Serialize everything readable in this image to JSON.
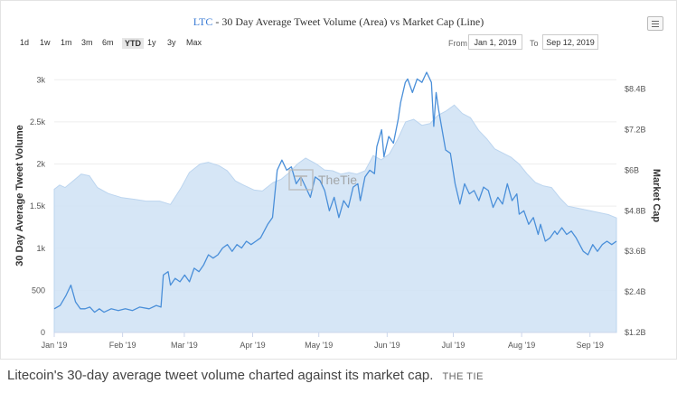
{
  "range_selector": {
    "buttons": [
      "1d",
      "1w",
      "1m",
      "3m",
      "6m",
      "YTD",
      "1y",
      "3y",
      "Max"
    ],
    "active": "YTD",
    "from_label": "From",
    "from_value": "Jan 1, 2019",
    "to_label": "To",
    "to_value": "Sep 12, 2019"
  },
  "watermark": "TheTie",
  "caption": {
    "text": "Litecoin's 30-day average tweet volume charted against its market cap.",
    "source": "THE TIE"
  },
  "colors": {
    "area_fill": "#cfe2f5",
    "line": "#4a8fd9",
    "title_symbol": "#3a7bd5"
  },
  "chart_data": {
    "type": "area",
    "title": "30 Day Average Tweet Volume (Area) vs Market Cap (Line)",
    "title_symbol": "LTC",
    "title_separator": " - ",
    "x_start": "2019-01-01",
    "x_end": "2019-09-12",
    "x_ticks": [
      "Jan '19",
      "Feb '19",
      "Mar '19",
      "Apr '19",
      "May '19",
      "Jun '19",
      "Jul '19",
      "Aug '19",
      "Sep '19"
    ],
    "y_left": {
      "label": "30 Day Average Tweet Volume",
      "ticks": [
        "0",
        "500",
        "1k",
        "1.5k",
        "2k",
        "2.5k",
        "3k"
      ],
      "min": 0,
      "max": 3250
    },
    "y_right": {
      "label": "Market Cap",
      "ticks": [
        "$1.2B",
        "$2.4B",
        "$3.6B",
        "$4.8B",
        "$6B",
        "$7.2B",
        "$8.4B"
      ],
      "min_billions": 1.2,
      "max_billions": 9.3
    },
    "series": [
      {
        "name": "30 Day Average Tweet Volume",
        "type": "area",
        "axis": "left",
        "points": [
          [
            0,
            1700
          ],
          [
            4,
            1750
          ],
          [
            8,
            1720
          ],
          [
            14,
            1800
          ],
          [
            20,
            1880
          ],
          [
            26,
            1860
          ],
          [
            32,
            1720
          ],
          [
            40,
            1650
          ],
          [
            50,
            1600
          ],
          [
            60,
            1580
          ],
          [
            68,
            1560
          ],
          [
            78,
            1560
          ],
          [
            86,
            1520
          ],
          [
            94,
            1720
          ],
          [
            100,
            1900
          ],
          [
            108,
            2000
          ],
          [
            114,
            2020
          ],
          [
            122,
            1980
          ],
          [
            128,
            1920
          ],
          [
            134,
            1800
          ],
          [
            140,
            1750
          ],
          [
            148,
            1690
          ],
          [
            154,
            1680
          ],
          [
            162,
            1780
          ],
          [
            168,
            1820
          ],
          [
            174,
            1900
          ],
          [
            180,
            2000
          ],
          [
            186,
            2070
          ],
          [
            194,
            2000
          ],
          [
            200,
            1930
          ],
          [
            206,
            1920
          ],
          [
            212,
            1880
          ],
          [
            218,
            1900
          ],
          [
            224,
            1880
          ],
          [
            230,
            1920
          ],
          [
            236,
            2100
          ],
          [
            242,
            2050
          ],
          [
            248,
            2120
          ],
          [
            254,
            2290
          ],
          [
            260,
            2500
          ],
          [
            266,
            2530
          ],
          [
            272,
            2460
          ],
          [
            278,
            2480
          ],
          [
            284,
            2580
          ],
          [
            290,
            2630
          ],
          [
            296,
            2700
          ],
          [
            302,
            2600
          ],
          [
            308,
            2550
          ],
          [
            314,
            2400
          ],
          [
            320,
            2300
          ],
          [
            326,
            2180
          ],
          [
            332,
            2130
          ],
          [
            338,
            2080
          ],
          [
            344,
            2000
          ],
          [
            350,
            1880
          ],
          [
            356,
            1780
          ],
          [
            362,
            1740
          ],
          [
            368,
            1720
          ],
          [
            374,
            1600
          ],
          [
            380,
            1500
          ],
          [
            386,
            1480
          ],
          [
            392,
            1460
          ],
          [
            398,
            1440
          ],
          [
            404,
            1420
          ],
          [
            410,
            1400
          ],
          [
            416,
            1360
          ]
        ]
      },
      {
        "name": "Market Cap",
        "type": "line",
        "axis": "right",
        "points": [
          [
            0,
            1.9
          ],
          [
            5,
            2.0
          ],
          [
            10,
            2.3
          ],
          [
            14,
            2.6
          ],
          [
            18,
            2.1
          ],
          [
            22,
            1.9
          ],
          [
            26,
            1.9
          ],
          [
            30,
            1.95
          ],
          [
            34,
            1.8
          ],
          [
            38,
            1.9
          ],
          [
            42,
            1.8
          ],
          [
            48,
            1.9
          ],
          [
            54,
            1.85
          ],
          [
            60,
            1.9
          ],
          [
            66,
            1.85
          ],
          [
            72,
            1.95
          ],
          [
            80,
            1.9
          ],
          [
            86,
            2.0
          ],
          [
            90,
            1.95
          ],
          [
            92,
            2.9
          ],
          [
            96,
            3.0
          ],
          [
            98,
            2.6
          ],
          [
            102,
            2.8
          ],
          [
            106,
            2.7
          ],
          [
            110,
            2.9
          ],
          [
            114,
            2.7
          ],
          [
            118,
            3.1
          ],
          [
            122,
            3.0
          ],
          [
            126,
            3.2
          ],
          [
            130,
            3.5
          ],
          [
            134,
            3.4
          ],
          [
            138,
            3.5
          ],
          [
            142,
            3.7
          ],
          [
            146,
            3.8
          ],
          [
            150,
            3.6
          ],
          [
            154,
            3.8
          ],
          [
            158,
            3.7
          ],
          [
            162,
            3.9
          ],
          [
            166,
            3.8
          ],
          [
            170,
            3.9
          ],
          [
            174,
            4.0
          ],
          [
            180,
            4.4
          ],
          [
            184,
            4.6
          ],
          [
            188,
            6.0
          ],
          [
            192,
            6.3
          ],
          [
            196,
            6.0
          ],
          [
            200,
            6.1
          ],
          [
            204,
            5.6
          ],
          [
            208,
            5.8
          ],
          [
            212,
            5.5
          ],
          [
            216,
            5.2
          ],
          [
            220,
            5.8
          ],
          [
            224,
            5.7
          ],
          [
            228,
            5.4
          ],
          [
            232,
            4.8
          ],
          [
            236,
            5.2
          ],
          [
            240,
            4.6
          ],
          [
            244,
            5.1
          ],
          [
            248,
            4.9
          ],
          [
            252,
            5.5
          ],
          [
            256,
            5.6
          ],
          [
            258,
            5.1
          ],
          [
            262,
            5.8
          ],
          [
            266,
            6.0
          ],
          [
            270,
            5.9
          ],
          [
            272,
            6.7
          ],
          [
            276,
            7.2
          ],
          [
            278,
            6.4
          ],
          [
            282,
            7.0
          ],
          [
            286,
            6.8
          ],
          [
            290,
            7.5
          ],
          [
            292,
            8.0
          ],
          [
            296,
            8.6
          ],
          [
            298,
            8.7
          ],
          [
            302,
            8.3
          ],
          [
            306,
            8.7
          ],
          [
            310,
            8.6
          ],
          [
            314,
            8.9
          ],
          [
            318,
            8.6
          ],
          [
            320,
            7.3
          ],
          [
            322,
            8.3
          ],
          [
            324,
            7.8
          ],
          [
            326,
            7.4
          ],
          [
            330,
            6.6
          ],
          [
            334,
            6.5
          ],
          [
            338,
            5.6
          ],
          [
            342,
            5.0
          ],
          [
            346,
            5.6
          ],
          [
            350,
            5.3
          ],
          [
            354,
            5.4
          ],
          [
            358,
            5.1
          ],
          [
            362,
            5.5
          ],
          [
            366,
            5.4
          ],
          [
            370,
            4.9
          ],
          [
            374,
            5.2
          ],
          [
            378,
            5.0
          ],
          [
            382,
            5.6
          ],
          [
            386,
            5.1
          ],
          [
            390,
            5.3
          ],
          [
            392,
            4.7
          ],
          [
            396,
            4.8
          ],
          [
            400,
            4.4
          ],
          [
            404,
            4.6
          ],
          [
            408,
            4.1
          ],
          [
            410,
            4.4
          ],
          [
            414,
            3.9
          ],
          [
            418,
            4.0
          ],
          [
            422,
            4.2
          ],
          [
            424,
            4.1
          ],
          [
            428,
            4.3
          ],
          [
            432,
            4.1
          ],
          [
            436,
            4.2
          ],
          [
            440,
            4.0
          ],
          [
            446,
            3.6
          ],
          [
            450,
            3.5
          ],
          [
            454,
            3.8
          ],
          [
            458,
            3.6
          ],
          [
            462,
            3.8
          ],
          [
            466,
            3.9
          ],
          [
            470,
            3.8
          ],
          [
            474,
            3.9
          ]
        ]
      }
    ]
  }
}
